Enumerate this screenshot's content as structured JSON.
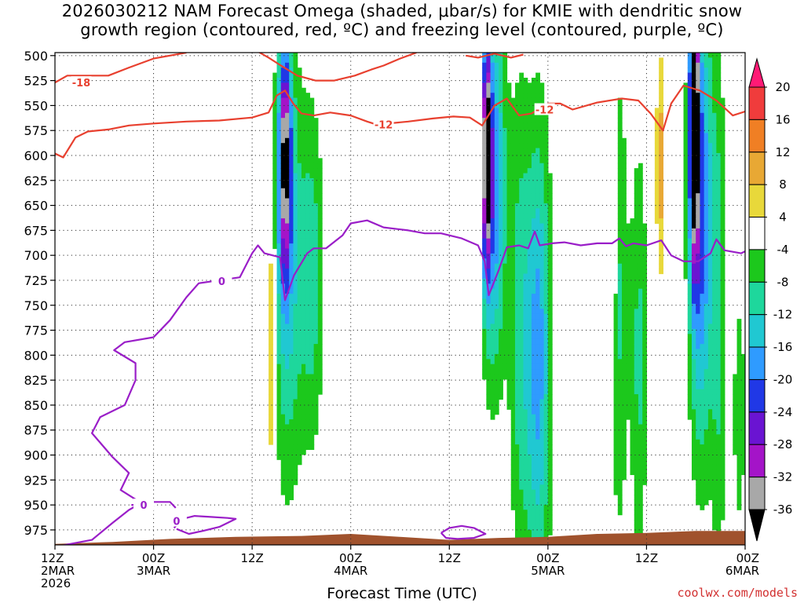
{
  "title": {
    "line1": "2026030212 NAM Forecast Omega (shaded, μbar/s) for KMIE with dendritic snow",
    "line2": "growth region (contoured, red, ºC) and freezing level (contoured, purple, ºC)"
  },
  "xlabel": "Forecast Time (UTC)",
  "credit": "coolwx.com/models",
  "colors": {
    "red_contour": "#e8402f",
    "purple_contour": "#9a1ec8",
    "terrain": "#a0522d"
  },
  "chart_data": {
    "type": "heatmap",
    "title": "2026030212 NAM Forecast Omega (shaded, μbar/s) for KMIE with dendritic snow growth region (contoured, red, ºC) and freezing level (contoured, purple, ºC)",
    "xlabel": "Forecast Time (UTC)",
    "ylabel": "",
    "y_axis": {
      "ticks": [
        500,
        525,
        550,
        575,
        600,
        625,
        650,
        675,
        700,
        725,
        750,
        775,
        800,
        825,
        850,
        875,
        900,
        925,
        950,
        975
      ],
      "inverted": true,
      "ylim": [
        497,
        990
      ]
    },
    "x_axis": {
      "ticks": [
        {
          "hour": 0,
          "lines": [
            "12Z",
            "2MAR",
            "2026"
          ]
        },
        {
          "hour": 12,
          "lines": [
            "00Z",
            "3MAR"
          ]
        },
        {
          "hour": 24,
          "lines": [
            "12Z"
          ]
        },
        {
          "hour": 36,
          "lines": [
            "00Z",
            "4MAR"
          ]
        },
        {
          "hour": 48,
          "lines": [
            "12Z"
          ]
        },
        {
          "hour": 60,
          "lines": [
            "00Z",
            "5MAR"
          ]
        },
        {
          "hour": 72,
          "lines": [
            "12Z"
          ]
        },
        {
          "hour": 84,
          "lines": [
            "00Z",
            "6MAR"
          ]
        }
      ],
      "xlim": [
        0,
        84
      ]
    },
    "grid": true,
    "colorbar": {
      "labels": [
        "20",
        "16",
        "12",
        "8",
        "4",
        "-4",
        "-8",
        "-12",
        "-16",
        "-20",
        "-24",
        "-28",
        "-32",
        "-36"
      ],
      "bins": [
        {
          "lo": 20,
          "hi": 24,
          "color": "#ff1a75"
        },
        {
          "lo": 16,
          "hi": 20,
          "color": "#f03c3c"
        },
        {
          "lo": 12,
          "hi": 16,
          "color": "#f07f24"
        },
        {
          "lo": 8,
          "hi": 12,
          "color": "#e8a834"
        },
        {
          "lo": 4,
          "hi": 8,
          "color": "#e8d83a"
        },
        {
          "lo": -4,
          "hi": 4,
          "color": "#ffffff"
        },
        {
          "lo": -8,
          "hi": -4,
          "color": "#1cc81c"
        },
        {
          "lo": -12,
          "hi": -8,
          "color": "#1ed79c"
        },
        {
          "lo": -16,
          "hi": -12,
          "color": "#20c8d2"
        },
        {
          "lo": -20,
          "hi": -16,
          "color": "#2f9bff"
        },
        {
          "lo": -24,
          "hi": -20,
          "color": "#2038e6"
        },
        {
          "lo": -28,
          "hi": -24,
          "color": "#6a14d2"
        },
        {
          "lo": -32,
          "hi": -28,
          "color": "#a414c8"
        },
        {
          "lo": -36,
          "hi": -32,
          "color": "#a8a8a8"
        },
        {
          "lo": -40,
          "hi": -36,
          "color": "#000000"
        }
      ]
    },
    "omega_cores": [
      {
        "t": 28.0,
        "p": 600,
        "value": -30,
        "sigma_t": 0.55,
        "sigma_p": 80
      },
      {
        "t": 28.3,
        "p": 710,
        "value": -14,
        "sigma_t": 1.3,
        "sigma_p": 150
      },
      {
        "t": 31.3,
        "p": 720,
        "value": -10,
        "sigma_t": 1.0,
        "sigma_p": 120
      },
      {
        "t": 26.3,
        "p": 780,
        "value": 10,
        "sigma_t": 0.4,
        "sigma_p": 110
      },
      {
        "t": 52.5,
        "p": 600,
        "value": -38,
        "sigma_t": 0.4,
        "sigma_p": 80
      },
      {
        "t": 53.4,
        "p": 630,
        "value": -20,
        "sigma_t": 1.0,
        "sigma_p": 130
      },
      {
        "t": 51.8,
        "p": 600,
        "value": 9,
        "sigma_t": 0.5,
        "sigma_p": 75
      },
      {
        "t": 58.8,
        "p": 800,
        "value": -18,
        "sigma_t": 1.1,
        "sigma_p": 160
      },
      {
        "t": 56.5,
        "p": 770,
        "value": -9,
        "sigma_t": 0.9,
        "sigma_p": 180
      },
      {
        "t": 67.9,
        "p": 700,
        "value": 8,
        "sigma_t": 0.35,
        "sigma_p": 120
      },
      {
        "t": 68.5,
        "p": 750,
        "value": -9,
        "sigma_t": 0.9,
        "sigma_p": 170
      },
      {
        "t": 71.1,
        "p": 800,
        "value": -9,
        "sigma_t": 0.7,
        "sigma_p": 150
      },
      {
        "t": 73.7,
        "p": 610,
        "value": 10,
        "sigma_t": 0.4,
        "sigma_p": 80
      },
      {
        "t": 77.8,
        "p": 560,
        "value": -40,
        "sigma_t": 0.4,
        "sigma_p": 100
      },
      {
        "t": 78.6,
        "p": 660,
        "value": -22,
        "sigma_t": 1.0,
        "sigma_p": 160
      },
      {
        "t": 80.8,
        "p": 760,
        "value": -9,
        "sigma_t": 0.7,
        "sigma_p": 180
      },
      {
        "t": 83.3,
        "p": 860,
        "value": -8,
        "sigma_t": 0.5,
        "sigma_p": 80
      }
    ],
    "contours": [
      {
        "color": "red",
        "level": -18,
        "label": "-18",
        "label_at": [
          3.2,
          527
        ],
        "points": [
          [
            0,
            527
          ],
          [
            1.5,
            520
          ],
          [
            4,
            520
          ],
          [
            6.5,
            520
          ],
          [
            9,
            512
          ],
          [
            12,
            503
          ],
          [
            16,
            497
          ]
        ]
      },
      {
        "color": "red",
        "level": -18,
        "label": "",
        "label_at": null,
        "points": [
          [
            24.5,
            495
          ],
          [
            26,
            502
          ],
          [
            27.5,
            510
          ],
          [
            29.5,
            520
          ],
          [
            31.7,
            525
          ],
          [
            34,
            525
          ],
          [
            36.5,
            520
          ],
          [
            38.5,
            514
          ],
          [
            40,
            510
          ],
          [
            42,
            503
          ],
          [
            44,
            497
          ]
        ]
      },
      {
        "color": "red",
        "level": -18,
        "label": "",
        "label_at": null,
        "points": [
          [
            50,
            500
          ],
          [
            51.5,
            502
          ],
          [
            53.5,
            498
          ],
          [
            55.5,
            502
          ],
          [
            57,
            499
          ]
        ]
      },
      {
        "color": "red",
        "level": -12,
        "label": "",
        "label_at": null,
        "points": [
          [
            0,
            598
          ],
          [
            1,
            602
          ],
          [
            2.5,
            582
          ],
          [
            4,
            576
          ],
          [
            6.5,
            574
          ],
          [
            9,
            570
          ],
          [
            12,
            568
          ],
          [
            16,
            566
          ],
          [
            20,
            565
          ],
          [
            24,
            562
          ],
          [
            26,
            557
          ],
          [
            27,
            540
          ],
          [
            28,
            535
          ],
          [
            29,
            548
          ],
          [
            30,
            558
          ],
          [
            31.5,
            560
          ],
          [
            33.5,
            557
          ],
          [
            36,
            560
          ],
          [
            38,
            566
          ],
          [
            39.5,
            570
          ]
        ]
      },
      {
        "color": "red",
        "level": -12,
        "label": "-12",
        "label_at": [
          40.0,
          569
        ],
        "points": [
          [
            40.5,
            568
          ],
          [
            43,
            566
          ],
          [
            46,
            563
          ],
          [
            48.5,
            561
          ],
          [
            50.5,
            562
          ],
          [
            52,
            570
          ],
          [
            53.5,
            550
          ],
          [
            55,
            543
          ],
          [
            56.5,
            560
          ],
          [
            58,
            558
          ],
          [
            60,
            548
          ],
          [
            61.5,
            548
          ],
          [
            63,
            554
          ],
          [
            66,
            547
          ],
          [
            69,
            543
          ],
          [
            71,
            545
          ],
          [
            72.5,
            558
          ],
          [
            74,
            575
          ],
          [
            75,
            548
          ],
          [
            76.5,
            530
          ],
          [
            78.5,
            535
          ],
          [
            80.5,
            545
          ],
          [
            82.5,
            560
          ],
          [
            84,
            556
          ]
        ]
      }
    ],
    "contour_labels_extra": [
      {
        "label": "-12",
        "at": [
          59.6,
          554
        ],
        "color": "red"
      }
    ],
    "freezing": [
      {
        "level": 0,
        "label": "0",
        "label_at": [
          20.3,
          726
        ],
        "points": [
          [
            0,
            992
          ],
          [
            4.5,
            985
          ],
          [
            7,
            968
          ],
          [
            9,
            955
          ],
          [
            10.5,
            948
          ],
          [
            8,
            935
          ],
          [
            9,
            918
          ],
          [
            7,
            902
          ],
          [
            4.5,
            878
          ],
          [
            5.5,
            862
          ],
          [
            8.5,
            850
          ],
          [
            9.8,
            825
          ],
          [
            9.8,
            808
          ],
          [
            7.2,
            795
          ],
          [
            8.5,
            787
          ],
          [
            12,
            782
          ],
          [
            14,
            765
          ],
          [
            16,
            742
          ],
          [
            17.5,
            728
          ],
          [
            22.5,
            722
          ],
          [
            24,
            698
          ],
          [
            24.7,
            690
          ],
          [
            25.5,
            698
          ],
          [
            27.4,
            702
          ],
          [
            28,
            745
          ],
          [
            29.1,
            720
          ],
          [
            30.7,
            698
          ],
          [
            31.5,
            693
          ],
          [
            33,
            693
          ],
          [
            35,
            680
          ],
          [
            36,
            668
          ],
          [
            38,
            665
          ],
          [
            40,
            672
          ],
          [
            43,
            675
          ],
          [
            45,
            678
          ],
          [
            47,
            678
          ],
          [
            49.5,
            683
          ],
          [
            51.5,
            690
          ],
          [
            52.3,
            706
          ],
          [
            52.8,
            740
          ],
          [
            54,
            715
          ],
          [
            55,
            692
          ],
          [
            56.5,
            690
          ],
          [
            57.6,
            693
          ],
          [
            58.4,
            676
          ],
          [
            59,
            690
          ],
          [
            60.5,
            688
          ],
          [
            62,
            687
          ],
          [
            64,
            690
          ],
          [
            66,
            688
          ],
          [
            67.8,
            688
          ],
          [
            68.7,
            683
          ],
          [
            69.5,
            691
          ],
          [
            70.4,
            688
          ],
          [
            72,
            690
          ],
          [
            73.8,
            685
          ],
          [
            75,
            700
          ],
          [
            76.5,
            706
          ],
          [
            78.3,
            706
          ],
          [
            79.8,
            698
          ],
          [
            80.5,
            684
          ],
          [
            81.5,
            695
          ],
          [
            83.5,
            698
          ],
          [
            84,
            696
          ]
        ]
      },
      {
        "level": 0,
        "label": "0",
        "label_at": [
          10.8,
          950
        ],
        "points": [
          [
            9.3,
            950
          ],
          [
            10.8,
            950
          ],
          [
            12,
            947
          ],
          [
            14,
            947
          ],
          [
            14.7,
            953
          ]
        ]
      },
      {
        "level": 0,
        "label": "0",
        "label_at": [
          14.8,
          966
        ],
        "points": [
          [
            14.5,
            973
          ],
          [
            15.5,
            964
          ],
          [
            17,
            961
          ],
          [
            19,
            962
          ],
          [
            21,
            963
          ],
          [
            22,
            964
          ],
          [
            20,
            972
          ],
          [
            18,
            976
          ],
          [
            16.3,
            979
          ],
          [
            14.8,
            974
          ]
        ]
      },
      {
        "level": 0,
        "label": "",
        "label_at": null,
        "points": [
          [
            47,
            978
          ],
          [
            48,
            973
          ],
          [
            49.5,
            971
          ],
          [
            51,
            973
          ],
          [
            52.4,
            979
          ],
          [
            51,
            983
          ],
          [
            49,
            984
          ],
          [
            47.6,
            983
          ],
          [
            47,
            978
          ]
        ]
      }
    ],
    "terrain": [
      [
        0,
        989
      ],
      [
        7,
        987
      ],
      [
        14,
        984
      ],
      [
        22,
        982
      ],
      [
        30,
        981
      ],
      [
        36,
        979
      ],
      [
        42,
        982
      ],
      [
        48,
        985
      ],
      [
        54,
        983
      ],
      [
        60,
        982
      ],
      [
        66,
        979
      ],
      [
        72,
        978
      ],
      [
        78,
        976
      ],
      [
        84,
        976
      ]
    ]
  }
}
